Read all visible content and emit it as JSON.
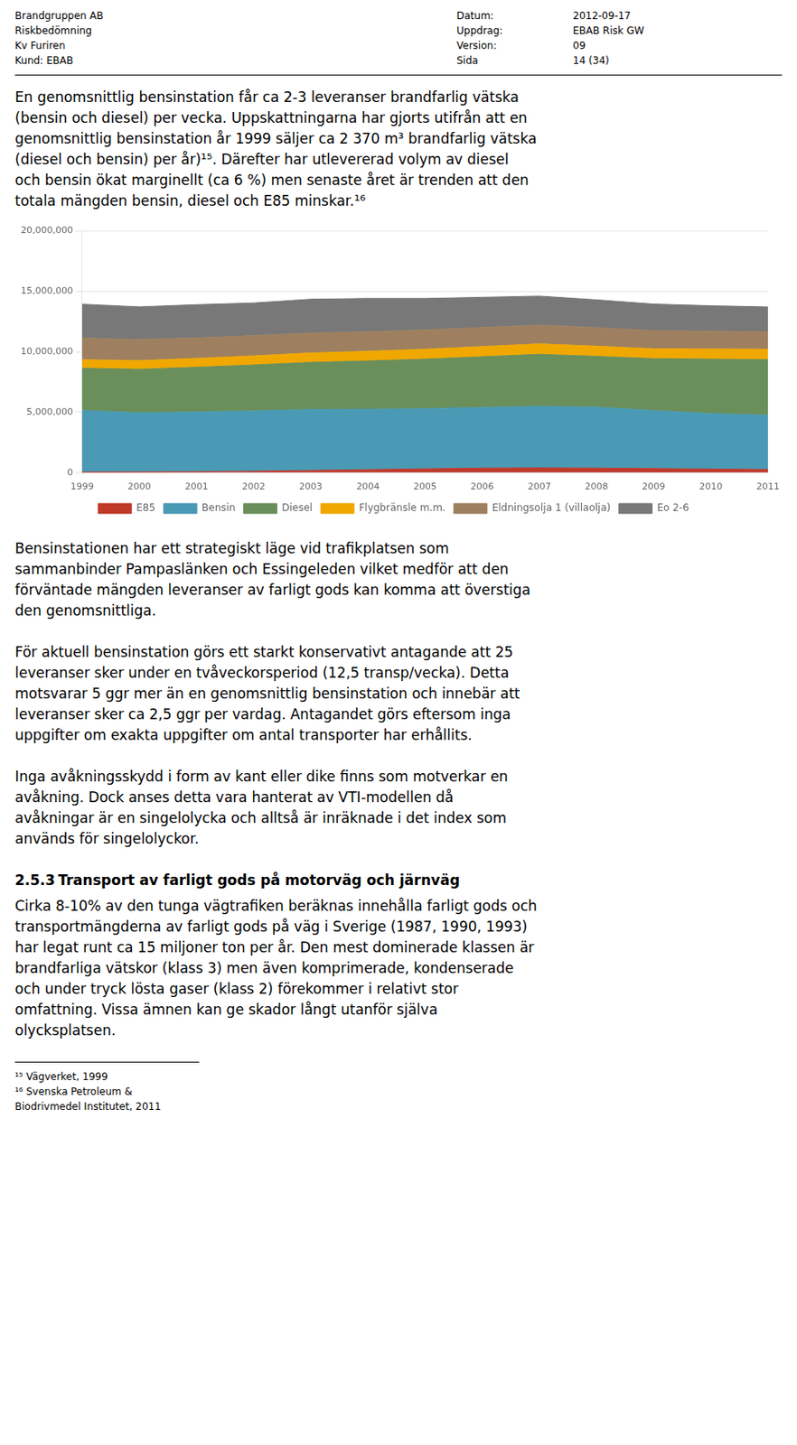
{
  "header": {
    "left": [
      "Brandgruppen AB",
      "Riskbedömning",
      "Kv Furiren",
      "Kund: EBAB"
    ],
    "right_labels": [
      "Datum:",
      "Uppdrag:",
      "Version:",
      "Sida"
    ],
    "right_values": [
      "2012-09-17",
      "EBAB Risk GW",
      "09",
      "14 (34)"
    ]
  },
  "text_before_chart": [
    "En genomsnittlig bensinstation får ca 2-3 leveranser brandfarlig vätska",
    "(bensin och diesel) per vecka. Uppskattningarna har gjorts utifrån att en",
    "genomsnittlig bensinstation år 1999 säljer ca 2 370 m³ brandfarlig vätska",
    "(diesel och bensin) per år)¹⁵. Därefter har utlevererad volym av diesel",
    "och bensin ökat marginellt (ca 6 %) men senaste året är trenden att den",
    "totala mängden bensin, diesel och E85 minskar.¹⁶"
  ],
  "chart_data": {
    "type": "area",
    "stacked": true,
    "grid": true,
    "legend": "bottom",
    "x": [
      1999,
      2000,
      2001,
      2002,
      2003,
      2004,
      2005,
      2006,
      2007,
      2008,
      2009,
      2010,
      2011
    ],
    "xlim": [
      1999,
      2011
    ],
    "xticks": [
      1999,
      2000,
      2001,
      2002,
      2003,
      2004,
      2005,
      2006,
      2007,
      2008,
      2009,
      2010,
      2011
    ],
    "ylim": [
      0,
      20000000
    ],
    "yticks": [
      0,
      {
        "value": 5000000,
        "label": "5,000,000"
      },
      {
        "value": 10000000,
        "label": "10,000,000"
      },
      {
        "value": 15000000,
        "label": "15,000,000"
      },
      {
        "value": 20000000,
        "label": "20,000,000"
      }
    ],
    "series": [
      {
        "name": "E85",
        "color": "#c0392b",
        "values": [
          50000,
          60000,
          80000,
          120000,
          180000,
          250000,
          320000,
          380000,
          400000,
          380000,
          340000,
          300000,
          260000
        ]
      },
      {
        "name": "Bensin",
        "color": "#4a9ab5",
        "values": [
          5100000,
          4900000,
          4950000,
          5000000,
          5050000,
          5000000,
          4980000,
          5020000,
          5100000,
          5050000,
          4800000,
          4600000,
          4500000
        ]
      },
      {
        "name": "Diesel",
        "color": "#6a8f5a",
        "values": [
          3500000,
          3600000,
          3700000,
          3800000,
          3900000,
          4000000,
          4100000,
          4200000,
          4300000,
          4200000,
          4300000,
          4500000,
          4600000
        ]
      },
      {
        "name": "Flygbränsle m.m.",
        "color": "#f0a800",
        "values": [
          700000,
          720000,
          730000,
          750000,
          780000,
          800000,
          820000,
          840000,
          860000,
          840000,
          820000,
          840000,
          860000
        ]
      },
      {
        "name": "Eldningsolja 1 (villaolja)",
        "color": "#9e8060",
        "values": [
          1800000,
          1750000,
          1700000,
          1680000,
          1650000,
          1620000,
          1600000,
          1580000,
          1560000,
          1540000,
          1500000,
          1480000,
          1450000
        ]
      },
      {
        "name": "Eo 2-6",
        "color": "#787878",
        "values": [
          2800000,
          2700000,
          2750000,
          2700000,
          2800000,
          2750000,
          2600000,
          2500000,
          2400000,
          2300000,
          2200000,
          2100000,
          2050000
        ]
      }
    ]
  },
  "text_after_chart": [
    [
      "Bensinstationen har ett strategiskt läge vid trafikplatsen som",
      "sammanbinder Pampaslänken och Essingeleden vilket medför att den",
      "förväntade mängden leveranser av farligt gods kan komma att överstiga",
      "den genomsnittliga."
    ],
    [
      "För aktuell bensinstation görs ett starkt konservativt antagande att 25",
      "leveranser sker under en tvåveckorsperiod (12,5 transp/vecka). Detta",
      "motsvarar 5 ggr mer än en genomsnittlig bensinstation och innebär att",
      "leveranser sker ca 2,5 ggr per vardag. Antagandet görs eftersom inga",
      "uppgifter om exakta uppgifter om antal transporter har erhållits."
    ],
    [
      "Inga avåkningsskydd i form av kant eller dike finns som motverkar en",
      "avåkning. Dock anses detta vara hanterat av VTI-modellen då",
      "avåkningar är en singelolycka och alltså är inräknade i det index som",
      "används för singelolyckor."
    ]
  ],
  "heading": {
    "number": "2.5.3",
    "text": "Transport av farligt gods på motorväg och järnväg"
  },
  "text_after_heading": [
    "Cirka 8-10% av den tunga vägtrafiken beräknas innehålla farligt gods och",
    "transportmängderna av farligt gods på väg i Sverige (1987, 1990, 1993)",
    "har legat runt ca 15 miljoner ton per år. Den mest dominerade klassen är",
    "brandfarliga vätskor (klass 3) men även komprimerade, kondenserade",
    "och under tryck lösta gaser (klass 2) förekommer i relativt stor",
    "omfattning. Vissa ämnen kan ge skador långt utanför själva",
    "olycksplatsen."
  ],
  "footnotes": [
    "¹⁵ Vägverket, 1999",
    "¹⁶ Svenska Petroleum & Biodrivmedel Institutet, 2011"
  ]
}
